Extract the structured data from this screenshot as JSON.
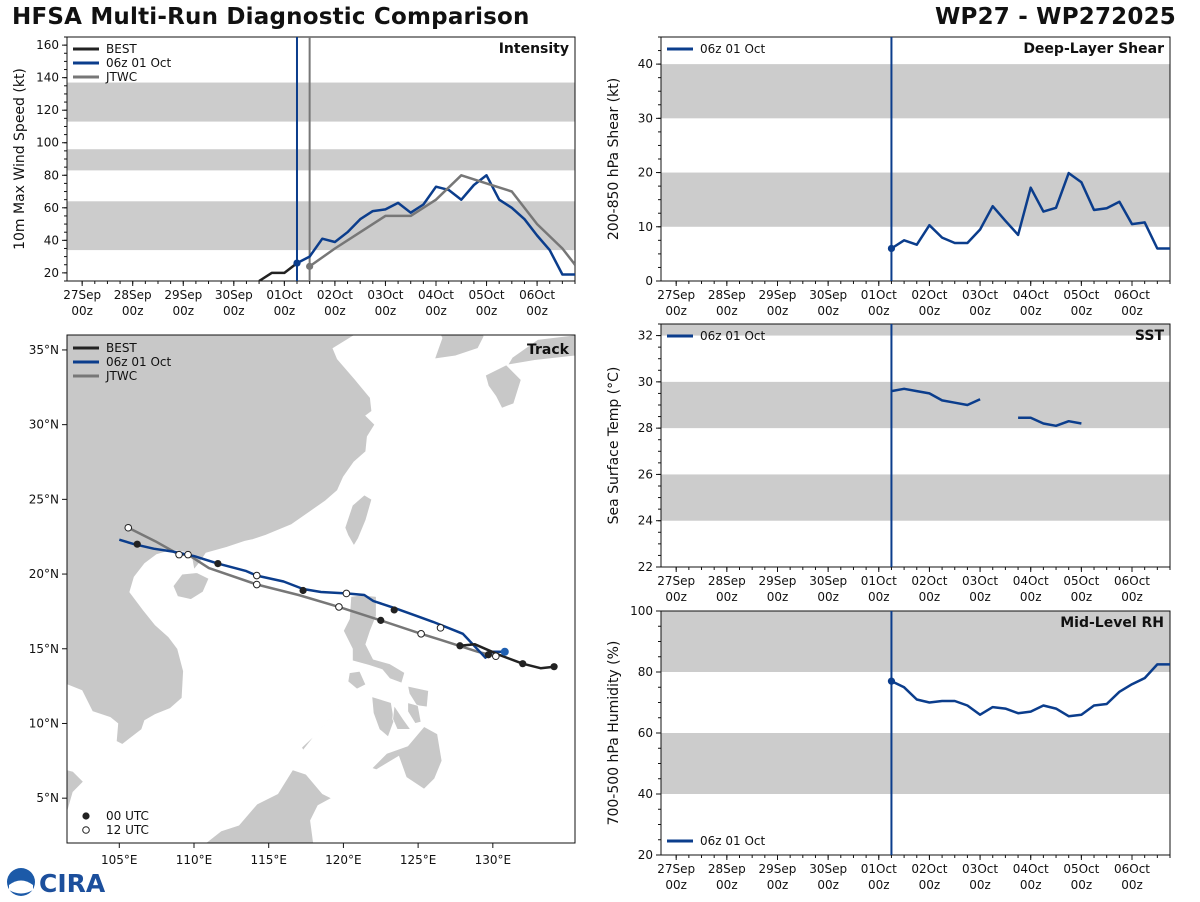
{
  "header": {
    "left": "HFSA Multi-Run Diagnostic Comparison",
    "right": "WP27 - WP272025"
  },
  "colors": {
    "best": "#222222",
    "run": "#0b3d8c",
    "jtwc": "#777777",
    "band": "#cccccc",
    "land": "#c8c8c8"
  },
  "time_axis": {
    "labels": [
      [
        "27Sep",
        "00z"
      ],
      [
        "28Sep",
        "00z"
      ],
      [
        "29Sep",
        "00z"
      ],
      [
        "30Sep",
        "00z"
      ],
      [
        "01Oct",
        "00z"
      ],
      [
        "02Oct",
        "00z"
      ],
      [
        "03Oct",
        "00z"
      ],
      [
        "04Oct",
        "00z"
      ],
      [
        "05Oct",
        "00z"
      ],
      [
        "06Oct",
        "00z"
      ]
    ],
    "start_day": -0.3,
    "end_day": 9.75
  },
  "logo": {
    "text": "CIRA"
  },
  "chart_data": [
    {
      "id": "intensity",
      "type": "line",
      "title": "Intensity",
      "ylabel": "10m Max Wind Speed (kt)",
      "ylim": [
        15,
        165
      ],
      "yticks": [
        20,
        40,
        60,
        80,
        100,
        120,
        140,
        160
      ],
      "bands": [
        [
          34,
          64
        ],
        [
          83,
          96
        ],
        [
          113,
          137
        ]
      ],
      "vlines": [
        4.25,
        4.5
      ],
      "legend": [
        "BEST",
        "06z 01 Oct",
        "JTWC"
      ],
      "series": [
        {
          "name": "BEST",
          "key": "best",
          "x": [
            3.5,
            3.75,
            4.0,
            4.25
          ],
          "y": [
            15,
            20,
            20,
            26
          ]
        },
        {
          "name": "06z 01 Oct",
          "key": "run",
          "marker_first": true,
          "x": [
            4.25,
            4.5,
            4.75,
            5.0,
            5.25,
            5.5,
            5.75,
            6.0,
            6.25,
            6.5,
            6.75,
            7.0,
            7.25,
            7.5,
            7.75,
            8.0,
            8.25,
            8.5,
            8.75,
            9.0,
            9.25,
            9.5,
            9.75
          ],
          "y": [
            26,
            30,
            41,
            39,
            45,
            53,
            58,
            59,
            63,
            57,
            62,
            73,
            71,
            65,
            74,
            80,
            65,
            60,
            53,
            43,
            34,
            19,
            19
          ]
        },
        {
          "name": "JTWC",
          "key": "jtwc",
          "marker_first": true,
          "x": [
            4.5,
            5.0,
            5.5,
            6.0,
            6.5,
            7.0,
            7.5,
            8.0,
            8.5,
            9.0,
            9.5,
            9.75
          ],
          "y": [
            24,
            35,
            45,
            55,
            55,
            65,
            80,
            75,
            70,
            50,
            35,
            25
          ]
        }
      ]
    },
    {
      "id": "shear",
      "type": "line",
      "title": "Deep-Layer Shear",
      "ylabel": "200-850 hPa Shear (kt)",
      "ylim": [
        0,
        45
      ],
      "yticks": [
        0,
        10,
        20,
        30,
        40
      ],
      "bands": [
        [
          10,
          20
        ],
        [
          30,
          40
        ]
      ],
      "vlines": [
        4.25
      ],
      "legend": [
        "06z 01 Oct"
      ],
      "series": [
        {
          "name": "06z 01 Oct",
          "key": "run",
          "marker_first": true,
          "x": [
            4.25,
            4.5,
            4.75,
            5.0,
            5.25,
            5.5,
            5.75,
            6.0,
            6.25,
            6.5,
            6.75,
            7.0,
            7.25,
            7.5,
            7.75,
            8.0,
            8.25,
            8.5,
            8.75,
            9.0,
            9.25,
            9.5,
            9.75
          ],
          "y": [
            6,
            7.5,
            6.7,
            10.3,
            8.0,
            7.0,
            7.0,
            9.5,
            13.8,
            11.1,
            8.5,
            17.2,
            12.8,
            13.5,
            19.9,
            18.2,
            13.1,
            13.4,
            14.6,
            10.5,
            10.8,
            6.0,
            6.0
          ]
        }
      ]
    },
    {
      "id": "sst",
      "type": "line",
      "title": "SST",
      "ylabel": "Sea Surface Temp (°C)",
      "ylim": [
        22,
        32.5
      ],
      "yticks": [
        22,
        24,
        26,
        28,
        30,
        32
      ],
      "bands": [
        [
          24,
          26
        ],
        [
          28,
          30
        ],
        [
          32,
          32.5
        ]
      ],
      "vlines": [
        4.25
      ],
      "legend": [
        "06z 01 Oct"
      ],
      "series": [
        {
          "name": "06z 01 Oct",
          "key": "run",
          "x": [
            4.25,
            4.5,
            4.75,
            5.0,
            5.25,
            5.5,
            5.75,
            6.0
          ],
          "y": [
            29.6,
            29.7,
            29.6,
            29.5,
            29.2,
            29.1,
            29.0,
            29.25
          ]
        },
        {
          "name": "06z 01 Oct",
          "key": "run",
          "x": [
            6.75,
            7.0,
            7.25,
            7.5,
            7.75,
            8.0
          ],
          "y": [
            28.45,
            28.45,
            28.2,
            28.1,
            28.3,
            28.2
          ]
        }
      ]
    },
    {
      "id": "rh",
      "type": "line",
      "title": "Mid-Level RH",
      "ylabel": "700-500 hPa Humidity (%)",
      "ylim": [
        20,
        100
      ],
      "yticks": [
        20,
        40,
        60,
        80,
        100
      ],
      "bands": [
        [
          40,
          60
        ],
        [
          80,
          100
        ]
      ],
      "vlines": [
        4.25
      ],
      "legend": [
        "06z 01 Oct"
      ],
      "series": [
        {
          "name": "06z 01 Oct",
          "key": "run",
          "marker_first": true,
          "x": [
            4.25,
            4.5,
            4.75,
            5.0,
            5.25,
            5.5,
            5.75,
            6.0,
            6.25,
            6.5,
            6.75,
            7.0,
            7.25,
            7.5,
            7.75,
            8.0,
            8.25,
            8.5,
            8.75,
            9.0,
            9.25,
            9.5,
            9.75
          ],
          "y": [
            77,
            75,
            71,
            70,
            70.5,
            70.5,
            69,
            66,
            68.5,
            68,
            66.5,
            67,
            69,
            68,
            65.5,
            66,
            69,
            69.5,
            73.5,
            76,
            78,
            82.5,
            82.5
          ]
        }
      ]
    },
    {
      "id": "track",
      "type": "scatter",
      "title": "Track",
      "lon_range": [
        101.5,
        135.5
      ],
      "lat_range": [
        2,
        36
      ],
      "xticks": [
        [
          "105°E",
          105
        ],
        [
          "110°E",
          110
        ],
        [
          "115°E",
          115
        ],
        [
          "120°E",
          120
        ],
        [
          "125°E",
          125
        ],
        [
          "130°E",
          130
        ]
      ],
      "yticks": [
        [
          "5°N",
          5
        ],
        [
          "10°N",
          10
        ],
        [
          "15°N",
          15
        ],
        [
          "20°N",
          20
        ],
        [
          "25°N",
          25
        ],
        [
          "30°N",
          30
        ],
        [
          "35°N",
          35
        ]
      ],
      "legend": [
        "BEST",
        "06z 01 Oct",
        "JTWC"
      ],
      "marker_legend": [
        "00 UTC",
        "12 UTC"
      ],
      "series": [
        {
          "name": "BEST",
          "key": "best",
          "lon": [
            134.1,
            133.2,
            132.0,
            130.4,
            128.8,
            127.8
          ],
          "lat": [
            13.8,
            13.7,
            14.0,
            14.6,
            15.3,
            15.2
          ]
        },
        {
          "name": "06z 01 Oct",
          "key": "run",
          "lon": [
            130.8,
            130.0,
            129.5,
            128.0,
            127.5,
            126.0,
            124.9,
            123.5,
            122.0,
            121.4,
            120.3,
            118.5,
            117.3,
            116.0,
            114.2,
            113.5,
            111.6,
            110.0,
            108.6,
            107.3,
            106.0,
            105.0
          ],
          "lat": [
            14.8,
            14.8,
            14.4,
            16.0,
            16.2,
            16.8,
            17.2,
            17.7,
            18.2,
            18.6,
            18.7,
            18.8,
            19.0,
            19.5,
            19.9,
            20.2,
            20.7,
            21.2,
            21.5,
            21.7,
            22.0,
            22.3
          ]
        },
        {
          "name": "JTWC",
          "key": "jtwc",
          "lon": [
            129.7,
            130.2,
            129.0,
            126.5,
            125.2,
            122.5,
            119.7,
            117.0,
            114.2,
            111.0,
            109.6,
            109.0,
            107.4,
            105.6
          ],
          "lat": [
            14.6,
            14.5,
            14.8,
            15.6,
            16.0,
            16.9,
            17.8,
            18.6,
            19.3,
            20.4,
            21.3,
            21.3,
            22.2,
            23.1
          ]
        }
      ],
      "markers_00utc": [
        [
          134.1,
          13.8
        ],
        [
          132.0,
          14.0
        ],
        [
          127.8,
          15.2
        ],
        [
          123.4,
          17.6
        ],
        [
          117.3,
          18.9
        ],
        [
          111.6,
          20.7
        ],
        [
          106.2,
          22.0
        ],
        [
          129.7,
          14.6
        ],
        [
          122.5,
          16.9
        ]
      ],
      "markers_12utc": [
        [
          130.2,
          14.5
        ],
        [
          126.5,
          16.4
        ],
        [
          125.2,
          16.0
        ],
        [
          120.2,
          18.7
        ],
        [
          119.7,
          17.8
        ],
        [
          114.2,
          19.9
        ],
        [
          114.2,
          19.3
        ],
        [
          109.0,
          21.3
        ],
        [
          109.6,
          21.3
        ],
        [
          105.6,
          23.1
        ]
      ],
      "current_position": [
        130.8,
        14.8
      ]
    }
  ]
}
